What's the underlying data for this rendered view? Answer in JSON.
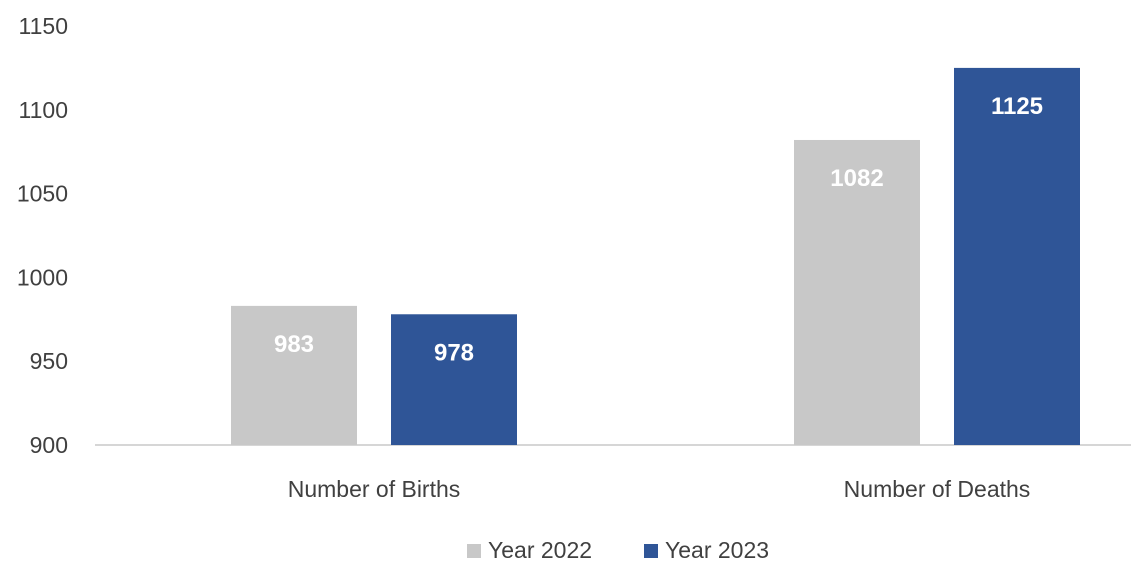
{
  "chart_data": {
    "type": "bar",
    "title": "",
    "xlabel": "",
    "ylabel": "",
    "categories": [
      "Number of Births",
      "Number of Deaths"
    ],
    "series": [
      {
        "name": "Year 2022",
        "values": [
          983,
          1082
        ],
        "color": "#c8c8c8"
      },
      {
        "name": "Year 2023",
        "values": [
          978,
          1125
        ],
        "color": "#2f5597"
      }
    ],
    "yticks": [
      900,
      950,
      1000,
      1050,
      1100,
      1150
    ],
    "ylim": [
      900,
      1150
    ],
    "grid": false,
    "legend": "bottom",
    "axis_color": "#c8c8c8"
  }
}
